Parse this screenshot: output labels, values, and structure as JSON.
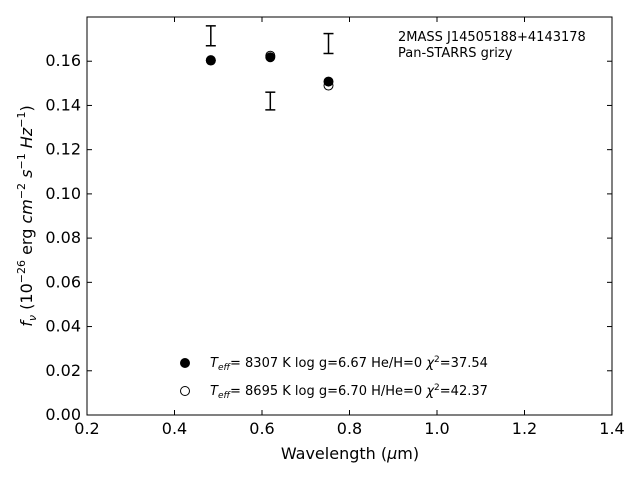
{
  "chart_data": {
    "type": "scatter",
    "xlabel": "Wavelength (μm)",
    "xlabel_parts": {
      "pre": "Wavelength (",
      "mu": "μ",
      "post": "m)"
    },
    "ylabel": "f_ν (10^-26 erg cm^-2 s^-1 Hz^-1)",
    "xlim": [
      0.2,
      1.4
    ],
    "ylim": [
      0.0,
      0.18
    ],
    "xticks": [
      0.2,
      0.4,
      0.6,
      0.8,
      1.0,
      1.2,
      1.4
    ],
    "yticks": [
      0.0,
      0.02,
      0.04,
      0.06,
      0.08,
      0.1,
      0.12,
      0.14,
      0.16
    ],
    "xtick_labels": [
      "0.2",
      "0.4",
      "0.6",
      "0.8",
      "1.0",
      "1.2",
      "1.4"
    ],
    "ytick_labels": [
      "0.00",
      "0.02",
      "0.04",
      "0.06",
      "0.08",
      "0.10",
      "0.12",
      "0.14",
      "0.16"
    ],
    "grid": false,
    "annotation": [
      "2MASS J14505188+4143178",
      "Pan-STARRS grizy"
    ],
    "observed": {
      "x": [
        0.483,
        0.619,
        0.752
      ],
      "y": [
        0.1715,
        0.142,
        0.168
      ],
      "yerr": [
        0.0045,
        0.004,
        0.0045
      ]
    },
    "series": [
      {
        "marker": "filled-circle",
        "x": [
          0.483,
          0.619,
          0.752
        ],
        "y": [
          0.1603,
          0.1618,
          0.1508
        ],
        "legend": {
          "teff_value": "8307 K",
          "logg": "log g=6.67",
          "comp": "He/H=0",
          "chi2": "=37.54"
        }
      },
      {
        "marker": "open-circle",
        "x": [
          0.483,
          0.619,
          0.752
        ],
        "y": [
          0.1605,
          0.1625,
          0.149
        ],
        "legend": {
          "teff_value": "8695 K",
          "logg": "log g=6.70",
          "comp": "H/He=0",
          "chi2": "=42.37"
        }
      }
    ],
    "legend_placement": "lower-center"
  }
}
